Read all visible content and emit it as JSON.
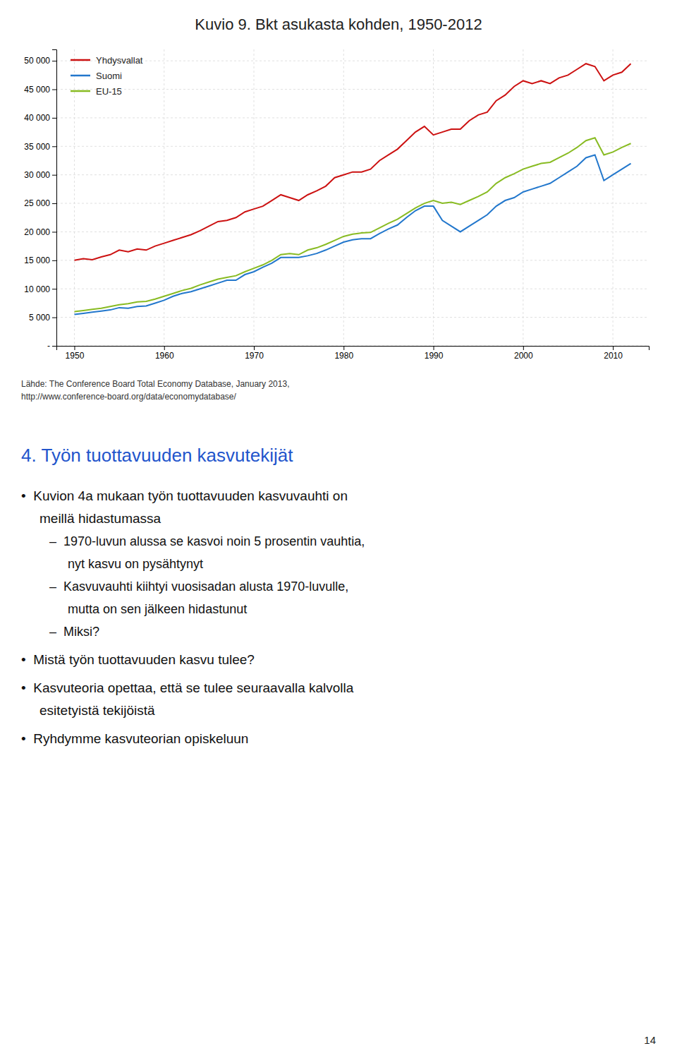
{
  "chart_data": {
    "type": "line",
    "title": "Kuvio 9. Bkt asukasta kohden, 1950-2012",
    "x": [
      1950,
      1951,
      1952,
      1953,
      1954,
      1955,
      1956,
      1957,
      1958,
      1959,
      1960,
      1961,
      1962,
      1963,
      1964,
      1965,
      1966,
      1967,
      1968,
      1969,
      1970,
      1971,
      1972,
      1973,
      1974,
      1975,
      1976,
      1977,
      1978,
      1979,
      1980,
      1981,
      1982,
      1983,
      1984,
      1985,
      1986,
      1987,
      1988,
      1989,
      1990,
      1991,
      1992,
      1993,
      1994,
      1995,
      1996,
      1997,
      1998,
      1999,
      2000,
      2001,
      2002,
      2003,
      2004,
      2005,
      2006,
      2007,
      2008,
      2009,
      2010,
      2011,
      2012
    ],
    "series": [
      {
        "name": "Yhdysvallat",
        "color": "#cc1111",
        "values": [
          15000,
          15300,
          15100,
          15600,
          16000,
          16800,
          16500,
          17000,
          16800,
          17500,
          18000,
          18500,
          19000,
          19500,
          20200,
          21000,
          21800,
          22000,
          22500,
          23500,
          24000,
          24500,
          25500,
          26500,
          26000,
          25500,
          26500,
          27200,
          28000,
          29500,
          30000,
          30500,
          30500,
          31000,
          32500,
          33500,
          34500,
          36000,
          37500,
          38500,
          37000,
          37500,
          38000,
          38000,
          39500,
          40500,
          41000,
          43000,
          44000,
          45500,
          46500,
          46000,
          46500,
          46000,
          47000,
          47500,
          48500,
          49500,
          49000,
          46500,
          47500,
          48000,
          49500
        ]
      },
      {
        "name": "Suomi",
        "color": "#2277cc",
        "values": [
          5500,
          5700,
          5900,
          6100,
          6300,
          6700,
          6600,
          6900,
          7000,
          7500,
          8000,
          8700,
          9200,
          9500,
          10000,
          10500,
          11000,
          11500,
          11500,
          12500,
          13000,
          13800,
          14500,
          15500,
          15500,
          15500,
          15800,
          16200,
          16800,
          17500,
          18200,
          18600,
          18800,
          18800,
          19700,
          20500,
          21200,
          22500,
          23700,
          24500,
          24500,
          22000,
          21000,
          20000,
          21000,
          22000,
          23000,
          24500,
          25500,
          26000,
          27000,
          27500,
          28000,
          28500,
          29500,
          30500,
          31500,
          33000,
          33500,
          29000,
          30000,
          31000,
          32000
        ]
      },
      {
        "name": "EU-15",
        "color": "#88bb22",
        "values": [
          6000,
          6200,
          6400,
          6600,
          6900,
          7200,
          7400,
          7700,
          7800,
          8200,
          8700,
          9200,
          9700,
          10100,
          10700,
          11200,
          11700,
          12000,
          12300,
          13000,
          13600,
          14200,
          15000,
          16000,
          16200,
          16000,
          16800,
          17200,
          17800,
          18500,
          19200,
          19600,
          19800,
          19900,
          20700,
          21500,
          22200,
          23200,
          24200,
          25000,
          25500,
          25000,
          25200,
          24800,
          25500,
          26200,
          27000,
          28500,
          29500,
          30200,
          31000,
          31500,
          32000,
          32200,
          33000,
          33800,
          34800,
          36000,
          36500,
          33500,
          34000,
          34800,
          35500
        ]
      }
    ],
    "xlim": [
      1948,
      2014
    ],
    "ylim": [
      0,
      52000
    ],
    "xticks": [
      1950,
      1960,
      1970,
      1980,
      1990,
      2000,
      2010
    ],
    "yticks": [
      {
        "value": 0,
        "label": "-"
      },
      {
        "value": 5000,
        "label": "5 000"
      },
      {
        "value": 10000,
        "label": "10 000"
      },
      {
        "value": 15000,
        "label": "15 000"
      },
      {
        "value": 20000,
        "label": "20 000"
      },
      {
        "value": 25000,
        "label": "25 000"
      },
      {
        "value": 30000,
        "label": "30 000"
      },
      {
        "value": 35000,
        "label": "35 000"
      },
      {
        "value": 40000,
        "label": "40 000"
      },
      {
        "value": 45000,
        "label": "45 000"
      },
      {
        "value": 50000,
        "label": "50 000"
      }
    ],
    "grid": true,
    "legend": "upper left",
    "annotations": [
      "Lähde: The Conference Board Total Economy Database, January 2013,",
      "http://www.conference-board.org/data/economydatabase/",
      "4. Työn tuottavuuden kasvutekijät",
      "•  Kuvion 4a mukaan työn tuottavuuden kasvuvauhti on",
      "meillä hidastumassa",
      "–  1970-luvun alussa se kasvoi noin 5 prosentin vauhtia,",
      "nyt kasvu on pysähtynyt",
      "–  Kasvuvauhti kiihtyi vuosisadan alusta 1970-luvulle,",
      "mutta on sen jälkeen hidastunut",
      "–  Miksi?",
      "•  Mistä työn tuottavuuden kasvu tulee?",
      "•  Kasvuteoria opettaa, että se tulee seuraavalla kalvolla",
      "esitetyistä tekijöistä",
      "•  Ryhdymme kasvuteorian opiskeluun",
      "14"
    ]
  }
}
